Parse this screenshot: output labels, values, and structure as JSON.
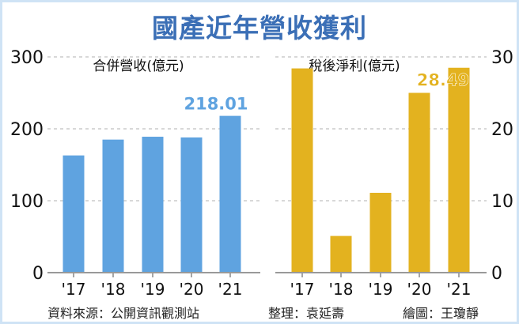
{
  "title": "國產近年營收獲利",
  "colors": {
    "title": "#3b6fb6",
    "revenue": "#5fa3e0",
    "profit": "#e3b21f",
    "grid": "#999999"
  },
  "footer": {
    "source": "資料來源：公開資訊觀測站",
    "editor": "整理：袁延壽",
    "illustrator": "繪圖：王瓊靜"
  },
  "chart_data": [
    {
      "type": "bar",
      "title": "合併營收(億元)",
      "categories": [
        "'17",
        "'18",
        "'19",
        "'20",
        "'21"
      ],
      "values": [
        163,
        185,
        189,
        188,
        218.01
      ],
      "data_labels": [
        null,
        null,
        null,
        null,
        "218.01"
      ],
      "ylim": [
        0,
        300
      ],
      "yticks": [
        "0",
        "100",
        "200",
        "300"
      ],
      "axis_side": "left",
      "grid": true
    },
    {
      "type": "bar",
      "title": "稅後淨利(億元)",
      "categories": [
        "'17",
        "'18",
        "'19",
        "'20",
        "'21"
      ],
      "values": [
        28.4,
        5.1,
        11.1,
        25.0,
        28.49
      ],
      "data_labels": [
        null,
        null,
        null,
        null,
        "28.49"
      ],
      "ylim": [
        0,
        30
      ],
      "yticks": [
        "0",
        "10",
        "20",
        "30"
      ],
      "axis_side": "right",
      "grid": true
    }
  ]
}
